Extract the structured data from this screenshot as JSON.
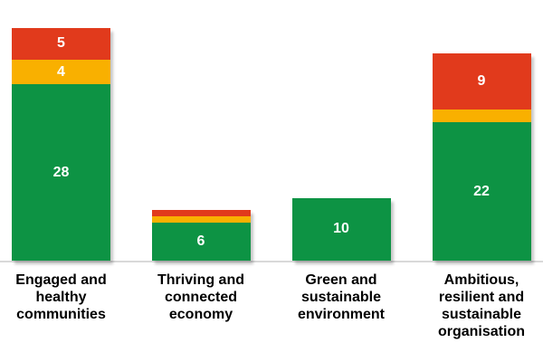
{
  "chart_data": {
    "type": "bar",
    "variant": "stacked-column",
    "title": "",
    "xlabel": "",
    "ylabel": "",
    "categories": [
      "Engaged and\nhealthy\ncommunities",
      "Thriving and\nconnected\neconomy",
      "Green and\nsustainable\nenvironment",
      "Ambitious,\nresilient and\nsustainable\norganisation"
    ],
    "series": [
      {
        "name": "Green",
        "color": "#0D9344",
        "values": [
          28,
          6,
          10,
          22
        ],
        "labels": [
          "28",
          "6",
          "10",
          "22"
        ],
        "label_color": "#FFFFFF"
      },
      {
        "name": "Amber",
        "color": "#F9B000",
        "values": [
          4,
          1,
          0,
          2
        ],
        "labels": [
          "4",
          "",
          "",
          ""
        ],
        "label_color": "#FFFFFF"
      },
      {
        "name": "Red",
        "color": "#E13A1C",
        "values": [
          5,
          1,
          0,
          9
        ],
        "labels": [
          "5",
          "",
          "",
          "9"
        ],
        "label_color": "#FFFFFF"
      }
    ],
    "stack_order_bottom_to_top": [
      "Green",
      "Amber",
      "Red"
    ],
    "totals": [
      37,
      8,
      10,
      33
    ],
    "ylim": [
      0,
      37
    ],
    "grid": false,
    "legend": false,
    "axis_line_color": "#D9D9D9",
    "background": "#FFFFFF",
    "category_label_color": "#000000"
  }
}
